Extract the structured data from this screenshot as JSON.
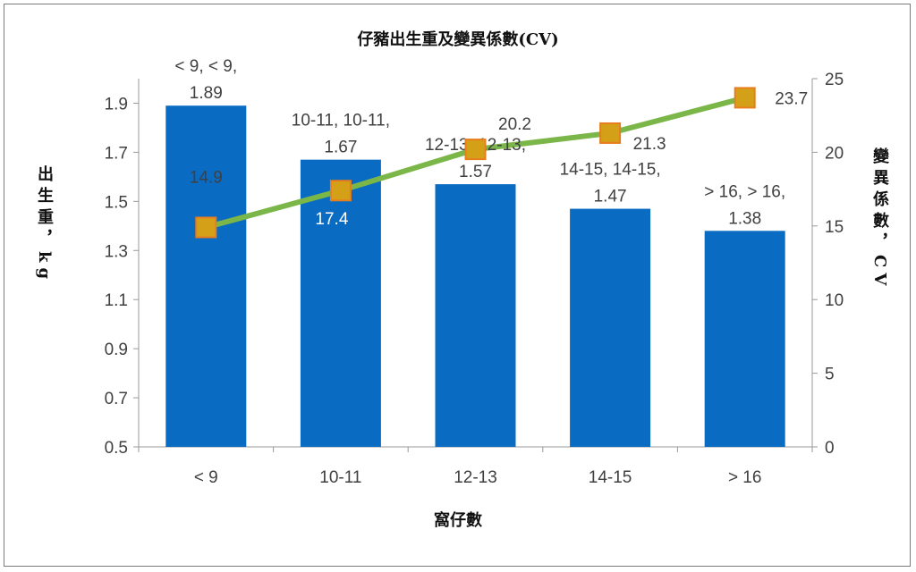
{
  "chart_data": {
    "type": "bar+line",
    "title": "仔豬出生重及變異係數(CV)",
    "xlabel": "窩仔數",
    "ylabel": "出生重，kg",
    "y2label": "變異係數，CV",
    "categories": [
      "< 9",
      "10-11",
      "12-13",
      "14-15",
      "> 16"
    ],
    "series": [
      {
        "name": "出生重",
        "type": "bar",
        "axis": "left",
        "values": [
          1.89,
          1.67,
          1.57,
          1.47,
          1.38
        ],
        "labels": [
          [
            "< 9, < 9,",
            "1.89"
          ],
          [
            "10-11, 10-11,",
            "1.67"
          ],
          [
            "12-13, 12-13,",
            "1.57"
          ],
          [
            "14-15, 14-15,",
            "1.47"
          ],
          [
            "> 16, > 16,",
            "1.38"
          ]
        ],
        "color": "#0a6bc2"
      },
      {
        "name": "變異係數",
        "type": "line",
        "axis": "right",
        "values": [
          14.9,
          17.4,
          20.2,
          21.3,
          23.7
        ],
        "labels": [
          "14.9",
          "17.4",
          "20.2",
          "21.3",
          "23.7"
        ],
        "color": "#7ab648",
        "marker_color": "#d4a017",
        "marker_edge": "#e87d1e"
      }
    ],
    "ylim": [
      0.5,
      2.0
    ],
    "yticks": [
      0.5,
      0.7,
      0.9,
      1.1,
      1.3,
      1.5,
      1.7,
      1.9
    ],
    "y2lim": [
      0,
      25
    ],
    "y2ticks": [
      0,
      5,
      10,
      15,
      20,
      25
    ],
    "grid": false,
    "legend": "none"
  }
}
